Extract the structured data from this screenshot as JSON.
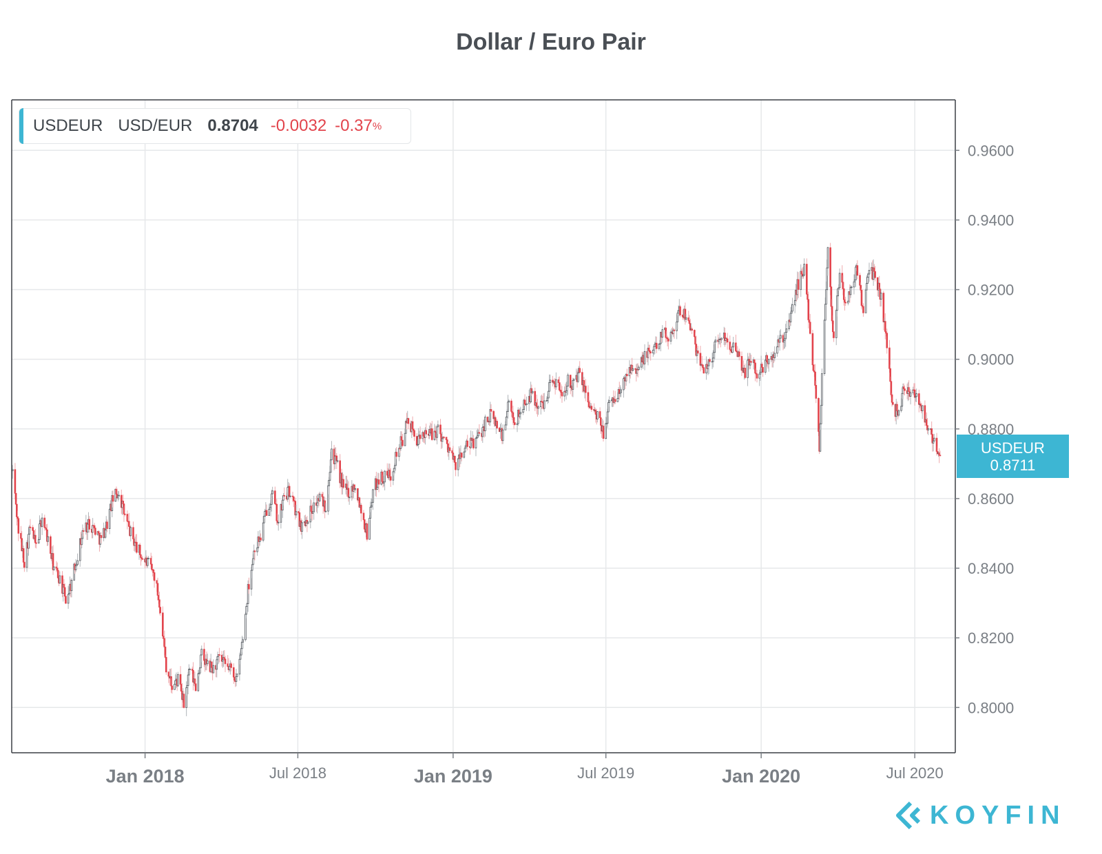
{
  "title": "Dollar / Euro Pair",
  "legend": {
    "symbol": "USDEUR",
    "pair": "USD/EUR",
    "last": "0.8704",
    "change": "-0.0032",
    "change_pct": "-0.37",
    "pct_sign": "%"
  },
  "price_tag": {
    "symbol": "USDEUR",
    "value": "0.8711"
  },
  "brand": {
    "name": "KOYFIN"
  },
  "colors": {
    "up": "#555a60",
    "down": "#e2434b",
    "accent": "#3db6d3",
    "grid": "#e6e8ea",
    "axis": "#7a7f85"
  },
  "icons": {
    "brand_logo": "koyfin-chevron-icon"
  },
  "chart_data": {
    "type": "candlestick",
    "title": "Dollar / Euro Pair",
    "series_name": "USDEUR",
    "x_range": [
      "2017-07-27",
      "2020-08-18"
    ],
    "y_range": [
      0.787,
      0.9745
    ],
    "grid": true,
    "y_ticks": [
      "0.9600",
      "0.9400",
      "0.9200",
      "0.9000",
      "0.8800",
      "0.8600",
      "0.8400",
      "0.8200",
      "0.8000"
    ],
    "x_ticks": [
      {
        "date": "2018-01-01",
        "label": "Jan 2018",
        "major": true
      },
      {
        "date": "2018-07-01",
        "label": "Jul 2018",
        "major": false
      },
      {
        "date": "2019-01-01",
        "label": "Jan 2019",
        "major": true
      },
      {
        "date": "2019-07-01",
        "label": "Jul 2019",
        "major": false
      },
      {
        "date": "2020-01-01",
        "label": "Jan 2020",
        "major": true
      },
      {
        "date": "2020-07-01",
        "label": "Jul 2020",
        "major": false
      }
    ],
    "close_path": [
      [
        "2017-07-28",
        0.868
      ],
      [
        "2017-08-04",
        0.851
      ],
      [
        "2017-08-11",
        0.842
      ],
      [
        "2017-08-18",
        0.852
      ],
      [
        "2017-08-25",
        0.846
      ],
      [
        "2017-09-01",
        0.855
      ],
      [
        "2017-09-08",
        0.848
      ],
      [
        "2017-09-15",
        0.84
      ],
      [
        "2017-09-22",
        0.837
      ],
      [
        "2017-09-29",
        0.831
      ],
      [
        "2017-10-06",
        0.836
      ],
      [
        "2017-10-13",
        0.844
      ],
      [
        "2017-10-20",
        0.851
      ],
      [
        "2017-10-27",
        0.853
      ],
      [
        "2017-11-03",
        0.851
      ],
      [
        "2017-11-10",
        0.848
      ],
      [
        "2017-11-17",
        0.853
      ],
      [
        "2017-11-24",
        0.86
      ],
      [
        "2017-12-01",
        0.862
      ],
      [
        "2017-12-08",
        0.855
      ],
      [
        "2017-12-15",
        0.85
      ],
      [
        "2017-12-22",
        0.846
      ],
      [
        "2017-12-29",
        0.843
      ],
      [
        "2018-01-05",
        0.841
      ],
      [
        "2018-01-12",
        0.838
      ],
      [
        "2018-01-19",
        0.829
      ],
      [
        "2018-01-26",
        0.812
      ],
      [
        "2018-02-02",
        0.806
      ],
      [
        "2018-02-09",
        0.808
      ],
      [
        "2018-02-16",
        0.801
      ],
      [
        "2018-02-23",
        0.811
      ],
      [
        "2018-03-02",
        0.806
      ],
      [
        "2018-03-09",
        0.815
      ],
      [
        "2018-03-16",
        0.812
      ],
      [
        "2018-03-23",
        0.811
      ],
      [
        "2018-03-30",
        0.814
      ],
      [
        "2018-04-06",
        0.812
      ],
      [
        "2018-04-13",
        0.811
      ],
      [
        "2018-04-20",
        0.808
      ],
      [
        "2018-04-27",
        0.82
      ],
      [
        "2018-05-04",
        0.836
      ],
      [
        "2018-05-11",
        0.846
      ],
      [
        "2018-05-18",
        0.849
      ],
      [
        "2018-05-25",
        0.857
      ],
      [
        "2018-06-01",
        0.861
      ],
      [
        "2018-06-08",
        0.853
      ],
      [
        "2018-06-15",
        0.861
      ],
      [
        "2018-06-22",
        0.862
      ],
      [
        "2018-06-29",
        0.856
      ],
      [
        "2018-07-06",
        0.852
      ],
      [
        "2018-07-13",
        0.855
      ],
      [
        "2018-07-20",
        0.858
      ],
      [
        "2018-07-27",
        0.86
      ],
      [
        "2018-08-03",
        0.858
      ],
      [
        "2018-08-10",
        0.874
      ],
      [
        "2018-08-17",
        0.869
      ],
      [
        "2018-08-24",
        0.863
      ],
      [
        "2018-08-31",
        0.862
      ],
      [
        "2018-09-07",
        0.864
      ],
      [
        "2018-09-14",
        0.857
      ],
      [
        "2018-09-21",
        0.85
      ],
      [
        "2018-09-28",
        0.862
      ],
      [
        "2018-10-05",
        0.866
      ],
      [
        "2018-10-12",
        0.866
      ],
      [
        "2018-10-19",
        0.867
      ],
      [
        "2018-10-26",
        0.873
      ],
      [
        "2018-11-02",
        0.877
      ],
      [
        "2018-11-09",
        0.883
      ],
      [
        "2018-11-16",
        0.878
      ],
      [
        "2018-11-23",
        0.876
      ],
      [
        "2018-11-30",
        0.88
      ],
      [
        "2018-12-07",
        0.878
      ],
      [
        "2018-12-14",
        0.88
      ],
      [
        "2018-12-21",
        0.877
      ],
      [
        "2018-12-28",
        0.874
      ],
      [
        "2019-01-04",
        0.869
      ],
      [
        "2019-01-11",
        0.873
      ],
      [
        "2019-01-18",
        0.875
      ],
      [
        "2019-01-25",
        0.876
      ],
      [
        "2019-02-01",
        0.878
      ],
      [
        "2019-02-08",
        0.882
      ],
      [
        "2019-02-15",
        0.884
      ],
      [
        "2019-02-22",
        0.881
      ],
      [
        "2019-03-01",
        0.878
      ],
      [
        "2019-03-08",
        0.887
      ],
      [
        "2019-03-15",
        0.882
      ],
      [
        "2019-03-22",
        0.885
      ],
      [
        "2019-03-29",
        0.889
      ],
      [
        "2019-04-05",
        0.89
      ],
      [
        "2019-04-12",
        0.886
      ],
      [
        "2019-04-19",
        0.888
      ],
      [
        "2019-04-26",
        0.893
      ],
      [
        "2019-05-03",
        0.894
      ],
      [
        "2019-05-10",
        0.89
      ],
      [
        "2019-05-17",
        0.894
      ],
      [
        "2019-05-24",
        0.893
      ],
      [
        "2019-05-31",
        0.896
      ],
      [
        "2019-06-07",
        0.89
      ],
      [
        "2019-06-14",
        0.886
      ],
      [
        "2019-06-21",
        0.883
      ],
      [
        "2019-06-28",
        0.879
      ],
      [
        "2019-07-05",
        0.887
      ],
      [
        "2019-07-12",
        0.889
      ],
      [
        "2019-07-19",
        0.891
      ],
      [
        "2019-07-26",
        0.896
      ],
      [
        "2019-08-02",
        0.899
      ],
      [
        "2019-08-09",
        0.897
      ],
      [
        "2019-08-16",
        0.901
      ],
      [
        "2019-08-23",
        0.902
      ],
      [
        "2019-08-30",
        0.904
      ],
      [
        "2019-09-06",
        0.908
      ],
      [
        "2019-09-13",
        0.906
      ],
      [
        "2019-09-20",
        0.91
      ],
      [
        "2019-09-27",
        0.914
      ],
      [
        "2019-10-04",
        0.913
      ],
      [
        "2019-10-11",
        0.908
      ],
      [
        "2019-10-18",
        0.9
      ],
      [
        "2019-10-25",
        0.898
      ],
      [
        "2019-11-01",
        0.899
      ],
      [
        "2019-11-08",
        0.904
      ],
      [
        "2019-11-15",
        0.907
      ],
      [
        "2019-11-22",
        0.906
      ],
      [
        "2019-11-29",
        0.903
      ],
      [
        "2019-12-06",
        0.9
      ],
      [
        "2019-12-13",
        0.896
      ],
      [
        "2019-12-20",
        0.901
      ],
      [
        "2019-12-27",
        0.895
      ],
      [
        "2020-01-03",
        0.898
      ],
      [
        "2020-01-10",
        0.9
      ],
      [
        "2020-01-17",
        0.901
      ],
      [
        "2020-01-24",
        0.906
      ],
      [
        "2020-01-31",
        0.907
      ],
      [
        "2020-02-07",
        0.915
      ],
      [
        "2020-02-14",
        0.922
      ],
      [
        "2020-02-21",
        0.926
      ],
      [
        "2020-02-28",
        0.908
      ],
      [
        "2020-03-06",
        0.89
      ],
      [
        "2020-03-10",
        0.875
      ],
      [
        "2020-03-13",
        0.895
      ],
      [
        "2020-03-20",
        0.932
      ],
      [
        "2020-03-27",
        0.905
      ],
      [
        "2020-04-03",
        0.925
      ],
      [
        "2020-04-10",
        0.915
      ],
      [
        "2020-04-17",
        0.921
      ],
      [
        "2020-04-24",
        0.926
      ],
      [
        "2020-05-01",
        0.914
      ],
      [
        "2020-05-08",
        0.925
      ],
      [
        "2020-05-15",
        0.924
      ],
      [
        "2020-05-22",
        0.918
      ],
      [
        "2020-05-29",
        0.904
      ],
      [
        "2020-06-05",
        0.886
      ],
      [
        "2020-06-12",
        0.885
      ],
      [
        "2020-06-19",
        0.893
      ],
      [
        "2020-06-26",
        0.891
      ],
      [
        "2020-07-03",
        0.89
      ],
      [
        "2020-07-10",
        0.886
      ],
      [
        "2020-07-17",
        0.88
      ],
      [
        "2020-07-24",
        0.876
      ],
      [
        "2020-07-31",
        0.871
      ]
    ]
  }
}
